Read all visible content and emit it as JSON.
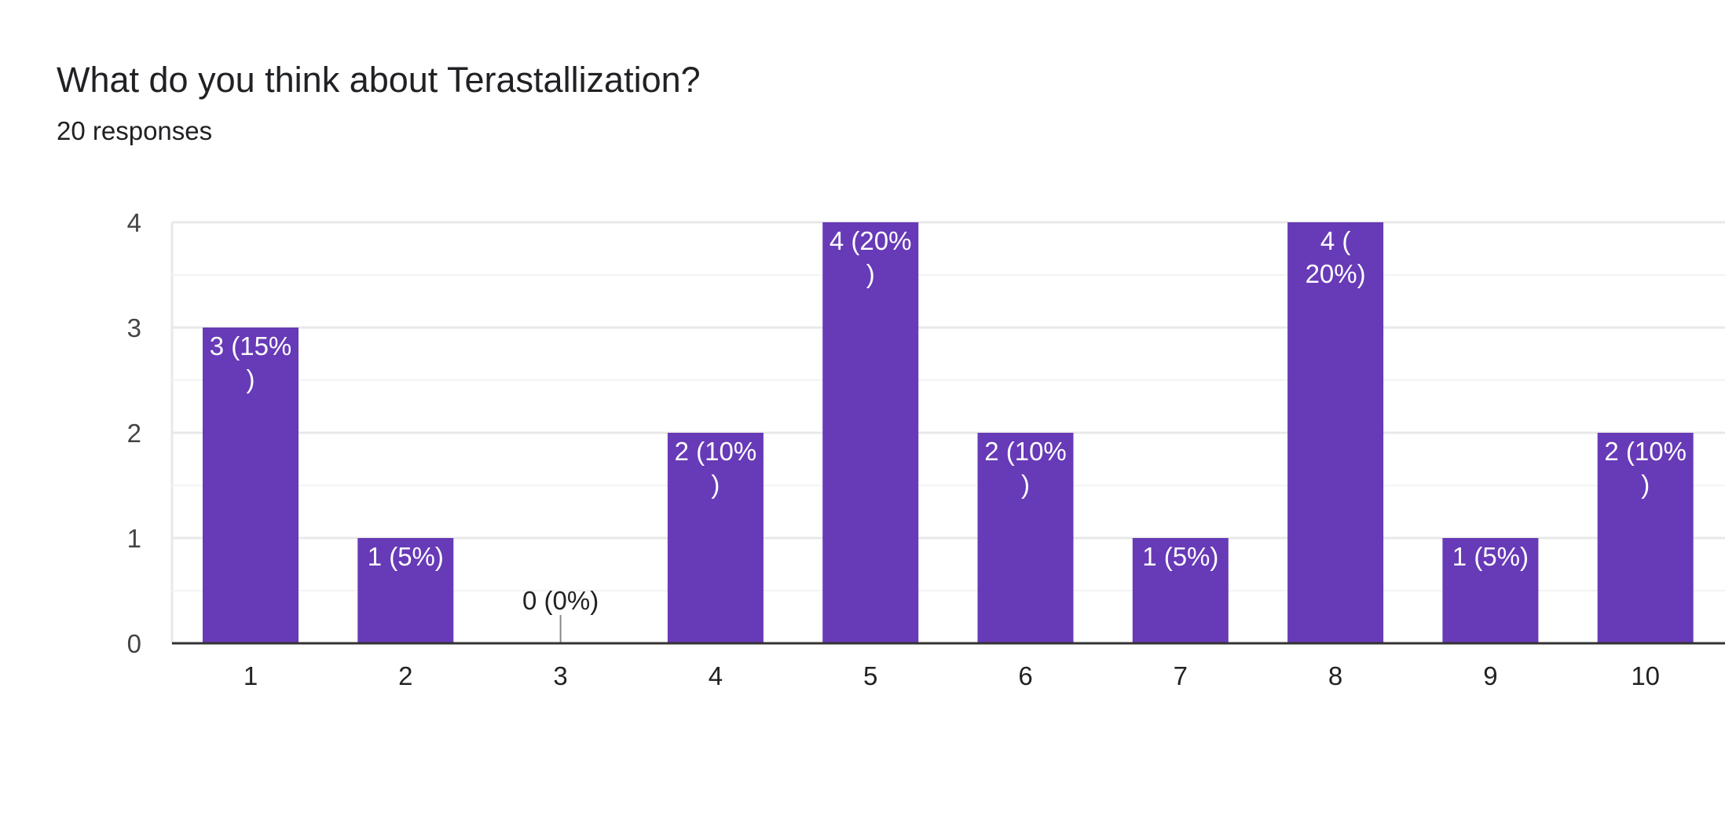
{
  "header": {
    "title": "What do you think about Terastallization?",
    "subtitle": "20 responses"
  },
  "colors": {
    "bar": "#673ab7",
    "label_inside": "#ffffff",
    "label_outside": "#222222"
  },
  "chart_data": {
    "type": "bar",
    "title": "What do you think about Terastallization?",
    "subtitle": "20 responses",
    "xlabel": "",
    "ylabel": "",
    "categories": [
      "1",
      "2",
      "3",
      "4",
      "5",
      "6",
      "7",
      "8",
      "9",
      "10"
    ],
    "values": [
      3,
      1,
      0,
      2,
      4,
      2,
      1,
      4,
      1,
      2
    ],
    "data_labels": [
      [
        "3 (15%",
        ")"
      ],
      [
        "1 (5%)"
      ],
      [
        "0 (0%)"
      ],
      [
        "2 (10%",
        ")"
      ],
      [
        "4 (20%",
        ")"
      ],
      [
        "2 (10%",
        ")"
      ],
      [
        "1 (5%)"
      ],
      [
        "4 (",
        "20%)"
      ],
      [
        "1 (5%)"
      ],
      [
        "2 (10%",
        ")"
      ]
    ],
    "yticks": [
      0,
      1,
      2,
      3,
      4
    ],
    "ylim": [
      0,
      4
    ],
    "grid": true,
    "legend": "none"
  }
}
